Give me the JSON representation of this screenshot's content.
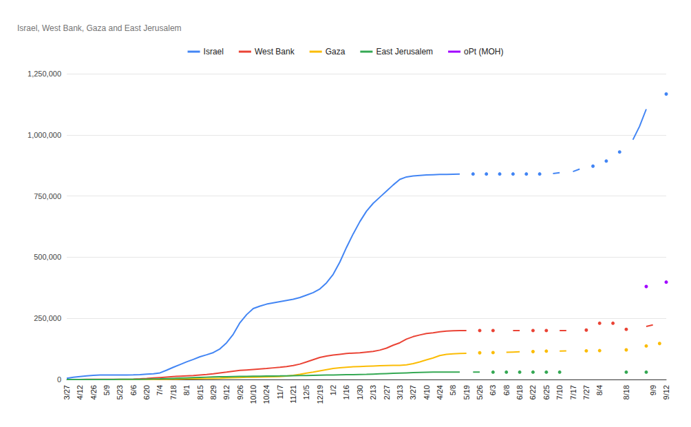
{
  "chart_data": {
    "type": "line",
    "title": "Israel, West Bank, Gaza and East Jerusalem",
    "categories": [
      "3/27",
      null,
      "4/12",
      null,
      "4/26",
      null,
      "5/9",
      null,
      "5/23",
      null,
      "6/6",
      null,
      "6/20",
      null,
      "7/4",
      null,
      "7/18",
      null,
      "8/1",
      null,
      "8/15",
      null,
      "8/29",
      null,
      "9/12",
      null,
      "9/26",
      null,
      "10/10",
      null,
      "10/24",
      null,
      "11/7",
      null,
      "11/21",
      null,
      "12/5",
      null,
      "12/19",
      null,
      "1/2",
      null,
      "1/16",
      null,
      "1/30",
      null,
      "2/13",
      null,
      "2/27",
      null,
      "3/13",
      null,
      "3/27",
      null,
      "4/10",
      null,
      "4/24",
      null,
      "5/8",
      null,
      "5/19",
      null,
      "5/26",
      null,
      "6/3",
      null,
      "6/8",
      null,
      "6/18",
      null,
      "6/22",
      null,
      "6/25",
      null,
      "7/10",
      null,
      "7/17",
      null,
      "7/27",
      null,
      "8/4",
      null,
      null,
      null,
      "8/18",
      null,
      null,
      null,
      "9/9",
      null,
      "9/12"
    ],
    "series": [
      {
        "name": "Israel",
        "color": "#4285f4",
        "values": [
          5000,
          9000,
          12000,
          15000,
          17000,
          18000,
          18000,
          18000,
          18000,
          18500,
          19000,
          20000,
          22000,
          23000,
          27000,
          38000,
          50000,
          61000,
          72000,
          82000,
          93000,
          101000,
          110000,
          125000,
          150000,
          185000,
          232000,
          265000,
          290000,
          300000,
          308000,
          313000,
          318000,
          323000,
          328000,
          335000,
          345000,
          355000,
          370000,
          395000,
          430000,
          480000,
          540000,
          595000,
          645000,
          688000,
          720000,
          745000,
          770000,
          795000,
          818000,
          828000,
          832000,
          834000,
          836000,
          837000,
          838000,
          838500,
          839000,
          839500,
          null,
          840000,
          null,
          840000,
          null,
          840000,
          null,
          840000,
          null,
          840000,
          null,
          840000,
          null,
          842000,
          845000,
          null,
          850000,
          860000,
          null,
          872000,
          null,
          893000,
          null,
          930000,
          null,
          980000,
          1035000,
          1105000,
          null,
          null,
          1167000
        ]
      },
      {
        "name": "West Bank",
        "color": "#ea4335",
        "values": [
          100,
          200,
          300,
          400,
          450,
          500,
          500,
          550,
          600,
          800,
          1500,
          2500,
          4000,
          6000,
          8000,
          10000,
          12000,
          13500,
          15000,
          16500,
          18500,
          20500,
          23000,
          27000,
          30000,
          34000,
          37000,
          39000,
          41000,
          43000,
          45000,
          47500,
          50000,
          53000,
          57000,
          63000,
          72000,
          81000,
          90000,
          96000,
          100000,
          103000,
          106000,
          108000,
          109000,
          112000,
          115000,
          120000,
          128000,
          140000,
          150000,
          165000,
          175000,
          182000,
          188000,
          191000,
          195000,
          198000,
          199000,
          200000,
          200000,
          null,
          200000,
          null,
          200000,
          null,
          null,
          200000,
          200000,
          null,
          200000,
          null,
          200000,
          null,
          200000,
          200000,
          null,
          null,
          202000,
          null,
          230000,
          null,
          230000,
          null,
          205000,
          null,
          null,
          217000,
          223000,
          null,
          null
        ]
      },
      {
        "name": "Gaza",
        "color": "#fbbc04",
        "values": [
          10,
          20,
          30,
          40,
          50,
          60,
          70,
          70,
          72,
          75,
          80,
          100,
          150,
          300,
          500,
          800,
          1200,
          1800,
          2500,
          3000,
          3500,
          4000,
          4500,
          5000,
          6000,
          7000,
          8000,
          9000,
          9500,
          10000,
          10500,
          11000,
          12000,
          14000,
          17000,
          21000,
          26000,
          30000,
          35000,
          40000,
          45000,
          48000,
          50000,
          52000,
          53000,
          54000,
          55000,
          56000,
          57000,
          57500,
          58000,
          60000,
          65000,
          72000,
          80000,
          88000,
          98000,
          103000,
          105000,
          106000,
          107000,
          null,
          109000,
          null,
          110000,
          null,
          111000,
          112000,
          113000,
          null,
          114000,
          null,
          116000,
          null,
          116000,
          117000,
          null,
          null,
          117000,
          null,
          118000,
          null,
          null,
          null,
          121000,
          null,
          null,
          137000,
          null,
          147000,
          null
        ]
      },
      {
        "name": "East Jerusalem",
        "color": "#34a853",
        "values": [
          0,
          50,
          100,
          150,
          200,
          250,
          300,
          350,
          400,
          500,
          700,
          1000,
          1500,
          2000,
          2500,
          3500,
          4500,
          5500,
          6500,
          7500,
          8500,
          9500,
          10500,
          11000,
          11500,
          12000,
          12500,
          13000,
          13300,
          13600,
          13900,
          14200,
          14500,
          15000,
          15500,
          16000,
          16500,
          17000,
          17500,
          18000,
          18500,
          19000,
          19500,
          20000,
          20500,
          21000,
          22000,
          23000,
          24000,
          25000,
          26000,
          27000,
          28000,
          29000,
          29500,
          30000,
          30000,
          30000,
          30000,
          30000,
          null,
          30000,
          30000,
          null,
          30000,
          null,
          30000,
          null,
          30000,
          null,
          30000,
          null,
          30000,
          null,
          30000,
          null,
          null,
          null,
          null,
          null,
          null,
          null,
          null,
          null,
          30000,
          null,
          null,
          30000,
          null,
          null,
          null
        ]
      },
      {
        "name": "oPt (MOH)",
        "color": "#a100ff",
        "values": [
          null,
          null,
          null,
          null,
          null,
          null,
          null,
          null,
          null,
          null,
          null,
          null,
          null,
          null,
          null,
          null,
          null,
          null,
          null,
          null,
          null,
          null,
          null,
          null,
          null,
          null,
          null,
          null,
          null,
          null,
          null,
          null,
          null,
          null,
          null,
          null,
          null,
          null,
          null,
          null,
          null,
          null,
          null,
          null,
          null,
          null,
          null,
          null,
          null,
          null,
          null,
          null,
          null,
          null,
          null,
          null,
          null,
          null,
          null,
          null,
          null,
          null,
          null,
          null,
          null,
          null,
          null,
          null,
          null,
          null,
          null,
          null,
          null,
          null,
          null,
          null,
          null,
          null,
          null,
          null,
          null,
          null,
          null,
          null,
          null,
          null,
          null,
          380000,
          null,
          null,
          398000
        ]
      }
    ],
    "ylim": [
      0,
      1250000
    ],
    "yticks": [
      0,
      {
        "value": 250000,
        "label": "250,000"
      },
      {
        "value": 500000,
        "label": "500,000"
      },
      {
        "value": 750000,
        "label": "750,000"
      },
      {
        "value": 1000000,
        "label": "1,000,000"
      },
      {
        "value": 1250000,
        "label": "1,250,000"
      }
    ],
    "grid": true,
    "legend": "top"
  }
}
